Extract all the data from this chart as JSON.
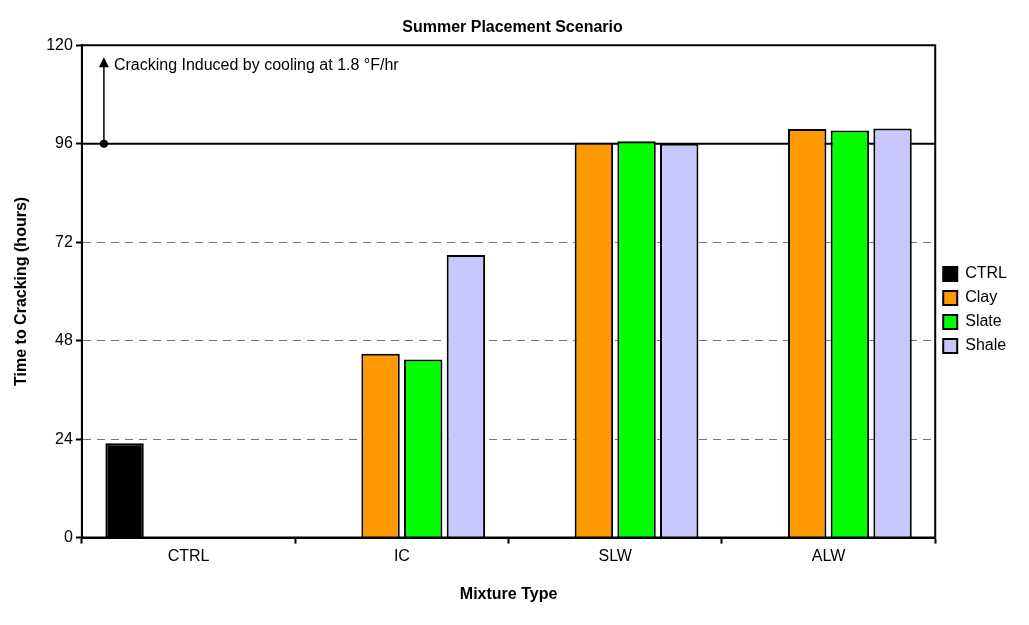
{
  "chart_data": {
    "type": "bar",
    "title": "Summer Placement Scenario",
    "xlabel": "Mixture Type",
    "ylabel": "Time to Cracking (hours)",
    "categories": [
      "CTRL",
      "IC",
      "SLW",
      "ALW"
    ],
    "series": [
      {
        "name": "CTRL",
        "color": "#000000",
        "values": [
          23,
          null,
          null,
          null
        ]
      },
      {
        "name": "Clay",
        "color": "#ff9900",
        "values": [
          null,
          44.8,
          96.2,
          99.6
        ]
      },
      {
        "name": "Slate",
        "color": "#00ff00",
        "values": [
          null,
          43.4,
          96.6,
          99.2
        ]
      },
      {
        "name": "Shale",
        "color": "#c8c8ff",
        "values": [
          null,
          68.9,
          96.0,
          99.7
        ]
      }
    ],
    "ylim": [
      0,
      120
    ],
    "yticks": [
      0,
      24,
      48,
      72,
      96,
      120
    ],
    "grid": "y",
    "legend": "right",
    "ref_lines": [
      {
        "axis": "y",
        "value": 96,
        "label": "Cracking Induced by cooling at 1.8 °F/hr",
        "color": "#000000",
        "line_style": "solid"
      }
    ]
  }
}
